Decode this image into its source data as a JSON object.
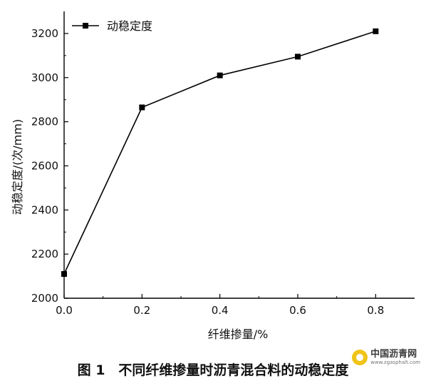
{
  "chart_data": {
    "type": "line",
    "xlabel": "纤维掺量/%",
    "ylabel": "动稳定度/(次/mm)",
    "xlim": [
      0.0,
      0.9
    ],
    "ylim": [
      2000,
      3300
    ],
    "x_ticks": [
      "0.0",
      "0.2",
      "0.4",
      "0.6",
      "0.8"
    ],
    "y_ticks": [
      "2000",
      "2200",
      "2400",
      "2600",
      "2800",
      "3000",
      "3200"
    ],
    "grid": false,
    "legend_position": "top-left",
    "series": [
      {
        "name": "动稳定度",
        "color": "#000000",
        "marker": "square",
        "x": [
          0.0,
          0.2,
          0.4,
          0.6,
          0.8
        ],
        "y": [
          2110,
          2865,
          3010,
          3095,
          3210
        ]
      }
    ]
  },
  "caption": "图 1　不同纤维掺量时沥青混合料的动稳定度",
  "watermark": {
    "title": "中国沥青网",
    "url": "www.zgasphalt.com"
  }
}
